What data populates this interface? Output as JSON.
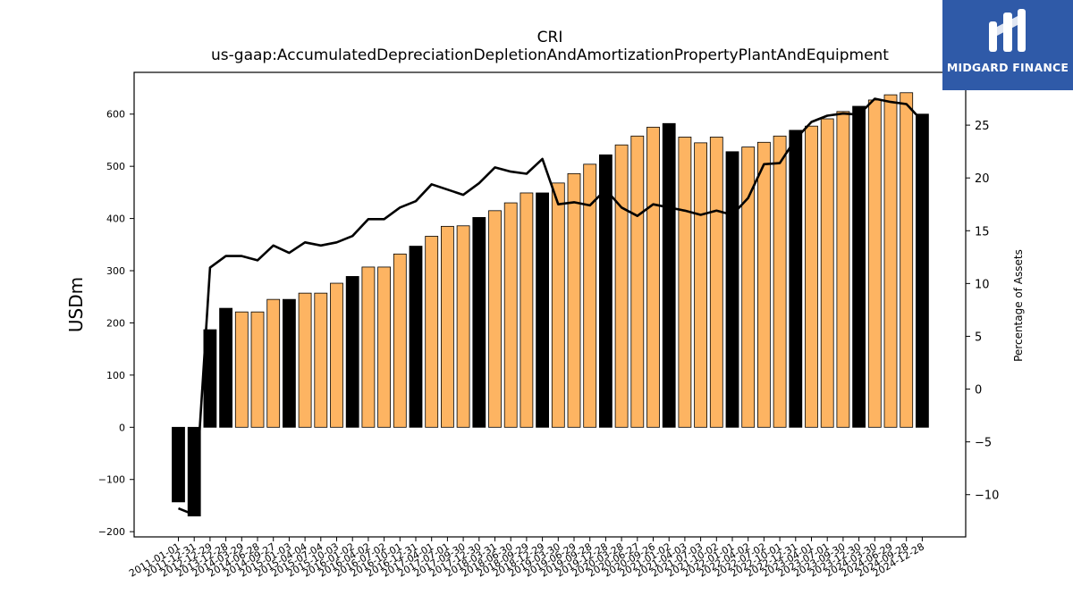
{
  "logo": {
    "text": "MIDGARD FINANCE",
    "icon": "midgard-logo-icon",
    "background": "#2f5aa8"
  },
  "chart_data": {
    "type": "bar+line",
    "title": "CRI",
    "subtitle": "us-gaap:AccumulatedDepreciationDepletionAndAmortizationPropertyPlantAndEquipment",
    "ylabel": "USDm",
    "y2label": "Percentage of Assets",
    "ylim": [
      -210,
      680
    ],
    "y2lim": [
      -14,
      30
    ],
    "yticks": [
      -200,
      -100,
      0,
      100,
      200,
      300,
      400,
      500,
      600
    ],
    "y2ticks": [
      -10,
      -5,
      0,
      5,
      10,
      15,
      20,
      25
    ],
    "categories": [
      "2011-01-01",
      "2011-12-31",
      "2012-12-29",
      "2013-12-28",
      "2014-03-29",
      "2014-06-28",
      "2014-09-27",
      "2015-01-03",
      "2015-04-04",
      "2015-07-04",
      "2015-10-03",
      "2016-01-02",
      "2016-04-02",
      "2016-07-02",
      "2016-10-01",
      "2016-12-31",
      "2017-04-01",
      "2017-07-01",
      "2017-09-30",
      "2017-12-30",
      "2018-03-31",
      "2018-06-30",
      "2018-09-29",
      "2018-12-29",
      "2019-03-30",
      "2019-06-29",
      "2019-09-28",
      "2019-12-28",
      "2020-03-28",
      "2020-06-27",
      "2020-09-26",
      "2021-01-02",
      "2021-04-03",
      "2021-07-03",
      "2021-10-02",
      "2022-01-01",
      "2022-04-02",
      "2022-07-02",
      "2022-10-01",
      "2022-12-31",
      "2023-04-01",
      "2023-07-01",
      "2023-09-30",
      "2023-12-30",
      "2024-03-30",
      "2024-06-29",
      "2024-09-28",
      "2024-12-28"
    ],
    "series": [
      {
        "type": "bar",
        "values": [
          -143,
          -170,
          187,
          228,
          221,
          221,
          245,
          245,
          257,
          257,
          276,
          289,
          307,
          307,
          332,
          347,
          366,
          385,
          386,
          402,
          415,
          430,
          449,
          449,
          468,
          486,
          504,
          522,
          541,
          558,
          575,
          582,
          556,
          545,
          556,
          528,
          537,
          546,
          558,
          569,
          577,
          591,
          605,
          615,
          627,
          637,
          641,
          600
        ],
        "annual": [
          true,
          true,
          true,
          true,
          false,
          false,
          false,
          true,
          false,
          false,
          false,
          true,
          false,
          false,
          false,
          true,
          false,
          false,
          false,
          true,
          false,
          false,
          false,
          true,
          false,
          false,
          false,
          true,
          false,
          false,
          false,
          true,
          false,
          false,
          false,
          true,
          false,
          false,
          false,
          true,
          false,
          false,
          false,
          true,
          false,
          false,
          false,
          true
        ]
      },
      {
        "type": "line",
        "axis": "right",
        "values": [
          -11.3,
          -11.9,
          11.5,
          12.6,
          12.6,
          12.2,
          13.6,
          12.9,
          13.9,
          13.6,
          13.9,
          14.5,
          16.1,
          16.1,
          17.2,
          17.8,
          19.4,
          18.9,
          18.4,
          19.5,
          21.0,
          20.6,
          20.4,
          21.8,
          17.5,
          17.7,
          17.4,
          18.9,
          17.2,
          16.4,
          17.5,
          17.2,
          16.9,
          16.5,
          16.9,
          16.5,
          18.1,
          21.3,
          21.4,
          23.7,
          25.3,
          25.9,
          26.1,
          26.0,
          27.5,
          27.2,
          27.0,
          25.4
        ]
      }
    ],
    "colors": {
      "annual": "#000000",
      "quarterly": "#fdb462",
      "line": "#000000"
    }
  }
}
